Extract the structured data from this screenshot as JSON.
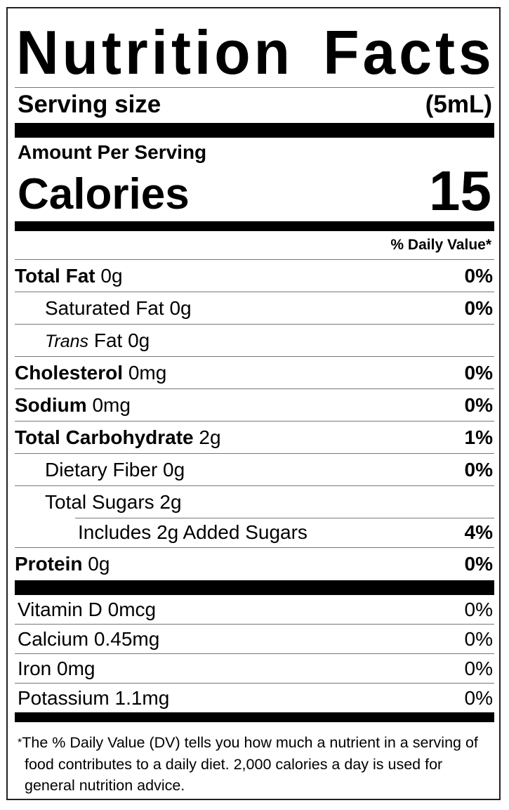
{
  "title": "Nutrition Facts",
  "serving": {
    "label": "Serving size",
    "value": "(5mL)"
  },
  "amount_per_serving": "Amount Per Serving",
  "calories": {
    "label": "Calories",
    "value": "15"
  },
  "daily_value_header": "% Daily Value*",
  "nutrients": [
    {
      "name": "Total Fat",
      "amount": "0g",
      "dv": "0%"
    },
    {
      "name": "Saturated Fat",
      "amount": "0g",
      "dv": "0%"
    },
    {
      "name": "Trans",
      "name_rest": "Fat",
      "amount": "0g",
      "dv": ""
    },
    {
      "name": "Cholesterol",
      "amount": "0mg",
      "dv": "0%"
    },
    {
      "name": "Sodium",
      "amount": "0mg",
      "dv": "0%"
    },
    {
      "name": "Total Carbohydrate",
      "amount": "2g",
      "dv": "1%"
    },
    {
      "name": "Dietary Fiber",
      "amount": "0g",
      "dv": "0%"
    },
    {
      "name": "Total Sugars",
      "amount": "2g",
      "dv": ""
    },
    {
      "name": "Includes 2g Added Sugars",
      "dv": "4%"
    },
    {
      "name": "Protein",
      "amount": "0g",
      "dv": "0%"
    }
  ],
  "vitamins": [
    {
      "label": "Vitamin D 0mcg",
      "dv": "0%"
    },
    {
      "label": "Calcium 0.45mg",
      "dv": "0%"
    },
    {
      "label": "Iron 0mg",
      "dv": "0%"
    },
    {
      "label": "Potassium 1.1mg",
      "dv": "0%"
    }
  ],
  "footnote": {
    "star": "*",
    "text": "The % Daily Value (DV) tells you how much a nutrient in a serving of food contributes to a daily diet. 2,000 calories a day is used for general nutrition advice."
  }
}
